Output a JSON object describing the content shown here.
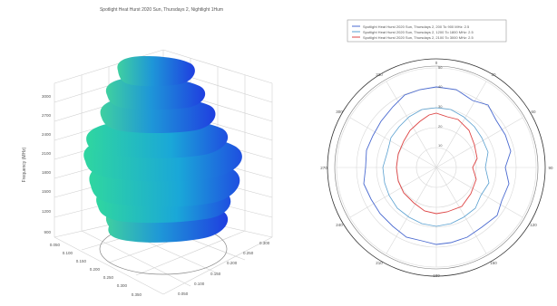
{
  "left_plot": {
    "title": "Spotlight Heat Hurst 2020 Sun, Thursdays 2, Nightlight 1Hum",
    "ylabel": "Frequency (MHz)",
    "z_ticks": [
      "900",
      "1200",
      "1500",
      "1800",
      "2100",
      "2400",
      "2700",
      "3000"
    ],
    "x_ticks": [
      "0.050",
      "0.100",
      "0.150",
      "0.200",
      "0.250",
      "0.300",
      "0.350"
    ],
    "y_ticks": [
      "0.050",
      "0.100",
      "0.150",
      "0.200",
      "0.250",
      "0.300"
    ],
    "colors": {
      "low": "#1aa7d8",
      "high": "#1f3fe0",
      "band": "#2fd6a0"
    }
  },
  "right_plot": {
    "legend": [
      {
        "label": "Spotlight Heat Hurst 2020 Sun, Thursdays 2, 200 To 900 MHz: 2.5",
        "color": "#4a6ad0"
      },
      {
        "label": "Spotlight Heat Hurst 2020 Sun, Thursdays 2, 1200 To 1800 MHz: 2.5",
        "color": "#5aa0d0"
      },
      {
        "label": "Spotlight Heat Hurst 2020 Sun, Thursdays 2, 2100 To 3000 MHz: 2.5",
        "color": "#d44"
      }
    ],
    "angle_labels": [
      "0",
      "30",
      "60",
      "90",
      "120",
      "150",
      "180",
      "210",
      "240",
      "270",
      "300",
      "330"
    ],
    "radial_labels": [
      "10",
      "20",
      "30",
      "40",
      "50"
    ]
  }
}
